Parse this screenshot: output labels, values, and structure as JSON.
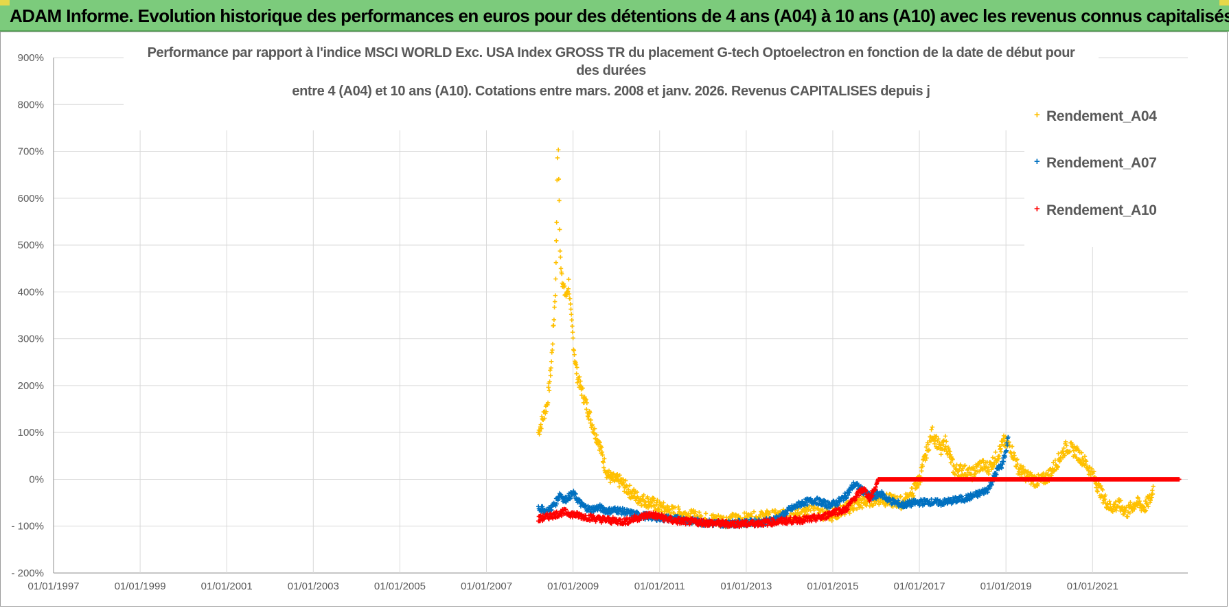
{
  "banner": {
    "title": "ADAM Informe. Evolution historique des performances en euros pour des détentions de 4 ans (A04) à 10 ans (A10) avec les revenus connus capitalisés",
    "color": "#7ccb7c"
  },
  "chart_data": {
    "type": "scatter",
    "title_lines": [
      "Performance par rapport à l'indice MSCI WORLD Exc. USA Index GROSS TR  du placement G-tech Optoelectron  en fonction de la date de début pour",
      "des durées",
      "entre 4 (A04) et 10 ans (A10).  Cotations entre mars. 2008 et janv. 2026.  Revenus CAPITALISES depuis j"
    ],
    "x_ticks": [
      "01/01/1997",
      "01/01/1999",
      "01/01/2001",
      "01/01/2003",
      "01/01/2005",
      "01/01/2007",
      "01/01/2009",
      "01/01/2011",
      "01/01/2013",
      "01/01/2015",
      "01/01/2017",
      "01/01/2019",
      "01/01/2021"
    ],
    "y_ticks": [
      "900%",
      "800%",
      "700%",
      "600%",
      "500%",
      "400%",
      "300%",
      "200%",
      "100%",
      "0%",
      "- 100%",
      "- 200%"
    ],
    "xlim": [
      1997.0,
      2023.2
    ],
    "ylim": [
      -200,
      900
    ],
    "grid": true,
    "legend_position": "top-right",
    "marker": "+",
    "series": [
      {
        "name": "Rendement_A04",
        "color": "#ffc000",
        "points": [
          [
            2008.2,
            100
          ],
          [
            2008.3,
            130
          ],
          [
            2008.4,
            160
          ],
          [
            2008.45,
            200
          ],
          [
            2008.5,
            250
          ],
          [
            2008.55,
            330
          ],
          [
            2008.6,
            420
          ],
          [
            2008.62,
            560
          ],
          [
            2008.65,
            760
          ],
          [
            2008.7,
            480
          ],
          [
            2008.75,
            430
          ],
          [
            2008.8,
            400
          ],
          [
            2008.85,
            390
          ],
          [
            2008.9,
            420
          ],
          [
            2008.95,
            350
          ],
          [
            2009.0,
            300
          ],
          [
            2009.05,
            250
          ],
          [
            2009.1,
            220
          ],
          [
            2009.2,
            190
          ],
          [
            2009.3,
            160
          ],
          [
            2009.4,
            130
          ],
          [
            2009.5,
            100
          ],
          [
            2009.6,
            80
          ],
          [
            2009.7,
            40
          ],
          [
            2009.8,
            10
          ],
          [
            2009.9,
            0
          ],
          [
            2010.1,
            -5
          ],
          [
            2010.3,
            -25
          ],
          [
            2010.5,
            -40
          ],
          [
            2010.8,
            -50
          ],
          [
            2011.0,
            -60
          ],
          [
            2011.3,
            -70
          ],
          [
            2011.6,
            -75
          ],
          [
            2012.0,
            -85
          ],
          [
            2012.5,
            -88
          ],
          [
            2013.0,
            -85
          ],
          [
            2013.5,
            -80
          ],
          [
            2014.0,
            -78
          ],
          [
            2014.5,
            -70
          ],
          [
            2015.0,
            -75
          ],
          [
            2015.5,
            -55
          ],
          [
            2016.0,
            -40
          ],
          [
            2016.3,
            -45
          ],
          [
            2016.6,
            -50
          ],
          [
            2016.8,
            -35
          ],
          [
            2017.0,
            0
          ],
          [
            2017.2,
            70
          ],
          [
            2017.3,
            100
          ],
          [
            2017.5,
            60
          ],
          [
            2017.6,
            80
          ],
          [
            2017.8,
            20
          ],
          [
            2018.0,
            20
          ],
          [
            2018.2,
            10
          ],
          [
            2018.4,
            30
          ],
          [
            2018.6,
            25
          ],
          [
            2018.8,
            50
          ],
          [
            2018.95,
            80
          ],
          [
            2019.1,
            70
          ],
          [
            2019.3,
            20
          ],
          [
            2019.6,
            0
          ],
          [
            2019.8,
            -5
          ],
          [
            2020.0,
            10
          ],
          [
            2020.2,
            40
          ],
          [
            2020.4,
            70
          ],
          [
            2020.6,
            60
          ],
          [
            2020.8,
            40
          ],
          [
            2021.0,
            10
          ],
          [
            2021.2,
            -30
          ],
          [
            2021.4,
            -60
          ],
          [
            2021.6,
            -55
          ],
          [
            2021.8,
            -70
          ],
          [
            2022.0,
            -50
          ],
          [
            2022.2,
            -60
          ],
          [
            2022.35,
            -40
          ],
          [
            2022.4,
            -15
          ]
        ]
      },
      {
        "name": "Rendement_A07",
        "color": "#0070c0",
        "points": [
          [
            2008.2,
            -60
          ],
          [
            2008.4,
            -70
          ],
          [
            2008.6,
            -50
          ],
          [
            2008.7,
            -30
          ],
          [
            2008.8,
            -45
          ],
          [
            2009.0,
            -30
          ],
          [
            2009.2,
            -55
          ],
          [
            2009.4,
            -65
          ],
          [
            2009.6,
            -60
          ],
          [
            2009.8,
            -68
          ],
          [
            2010.0,
            -65
          ],
          [
            2010.3,
            -72
          ],
          [
            2010.6,
            -78
          ],
          [
            2011.0,
            -82
          ],
          [
            2011.5,
            -86
          ],
          [
            2012.0,
            -92
          ],
          [
            2012.5,
            -95
          ],
          [
            2013.0,
            -93
          ],
          [
            2013.5,
            -90
          ],
          [
            2013.8,
            -80
          ],
          [
            2014.0,
            -65
          ],
          [
            2014.3,
            -50
          ],
          [
            2014.6,
            -45
          ],
          [
            2014.9,
            -55
          ],
          [
            2015.1,
            -50
          ],
          [
            2015.3,
            -35
          ],
          [
            2015.5,
            -10
          ],
          [
            2015.7,
            -25
          ],
          [
            2015.9,
            -40
          ],
          [
            2016.1,
            -30
          ],
          [
            2016.3,
            -45
          ],
          [
            2016.6,
            -55
          ],
          [
            2016.9,
            -50
          ],
          [
            2017.2,
            -48
          ],
          [
            2017.5,
            -50
          ],
          [
            2017.8,
            -45
          ],
          [
            2018.1,
            -40
          ],
          [
            2018.4,
            -30
          ],
          [
            2018.6,
            -20
          ],
          [
            2018.8,
            20
          ],
          [
            2018.9,
            30
          ],
          [
            2019.0,
            60
          ],
          [
            2019.05,
            90
          ]
        ]
      },
      {
        "name": "Rendement_A10",
        "color": "#ff0000",
        "points": [
          [
            2008.2,
            -85
          ],
          [
            2008.4,
            -80
          ],
          [
            2008.6,
            -75
          ],
          [
            2008.8,
            -70
          ],
          [
            2009.0,
            -75
          ],
          [
            2009.3,
            -80
          ],
          [
            2009.6,
            -85
          ],
          [
            2009.9,
            -88
          ],
          [
            2010.2,
            -90
          ],
          [
            2010.5,
            -82
          ],
          [
            2010.8,
            -75
          ],
          [
            2011.0,
            -80
          ],
          [
            2011.3,
            -88
          ],
          [
            2011.6,
            -90
          ],
          [
            2012.0,
            -92
          ],
          [
            2012.5,
            -95
          ],
          [
            2013.0,
            -95
          ],
          [
            2013.5,
            -92
          ],
          [
            2014.0,
            -88
          ],
          [
            2014.5,
            -85
          ],
          [
            2014.8,
            -80
          ],
          [
            2015.0,
            -70
          ],
          [
            2015.3,
            -65
          ],
          [
            2015.5,
            -40
          ],
          [
            2015.7,
            -20
          ],
          [
            2015.85,
            -40
          ],
          [
            2015.95,
            -25
          ],
          [
            2016.05,
            0
          ],
          [
            2016.5,
            0
          ],
          [
            2017.0,
            0
          ],
          [
            2017.5,
            0
          ],
          [
            2018.0,
            0
          ],
          [
            2018.5,
            0
          ],
          [
            2019.0,
            0
          ],
          [
            2019.5,
            0
          ],
          [
            2020.0,
            0
          ],
          [
            2020.5,
            0
          ],
          [
            2021.0,
            0
          ],
          [
            2021.5,
            0
          ],
          [
            2022.0,
            0
          ],
          [
            2022.5,
            0
          ],
          [
            2023.0,
            0
          ]
        ]
      }
    ]
  }
}
